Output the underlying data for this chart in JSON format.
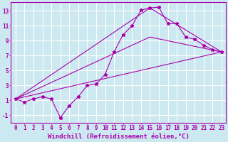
{
  "xlabel": "Windchill (Refroidissement éolien,°C)",
  "background_color": "#cce8f0",
  "grid_color": "#ffffff",
  "line_color": "#aa00aa",
  "xlim": [
    -0.5,
    23.5
  ],
  "ylim": [
    -2.0,
    14.2
  ],
  "xticks": [
    0,
    1,
    2,
    3,
    4,
    5,
    6,
    7,
    8,
    9,
    10,
    11,
    12,
    13,
    14,
    15,
    16,
    17,
    18,
    19,
    20,
    21,
    22,
    23
  ],
  "yticks": [
    -1,
    1,
    3,
    5,
    7,
    9,
    11,
    13
  ],
  "line1_x": [
    0,
    1,
    2,
    3,
    4,
    5,
    6,
    7,
    8,
    9,
    10,
    11,
    12,
    13,
    14,
    15,
    16,
    17,
    18,
    19,
    20,
    21,
    22,
    23
  ],
  "line1_y": [
    1.2,
    0.8,
    1.2,
    1.5,
    1.2,
    -1.3,
    0.3,
    1.5,
    3.0,
    3.2,
    4.5,
    7.5,
    9.8,
    11.0,
    13.1,
    13.4,
    13.5,
    11.3,
    11.3,
    9.5,
    9.2,
    8.4,
    7.8,
    7.5
  ],
  "line2_x": [
    0,
    23
  ],
  "line2_y": [
    1.2,
    7.5
  ],
  "line3_x": [
    0,
    15,
    23
  ],
  "line3_y": [
    1.2,
    13.4,
    7.5
  ],
  "line4_x": [
    0,
    15,
    23
  ],
  "line4_y": [
    1.2,
    9.5,
    7.5
  ],
  "xlabel_fontsize": 6.5,
  "tick_fontsize": 5.5
}
